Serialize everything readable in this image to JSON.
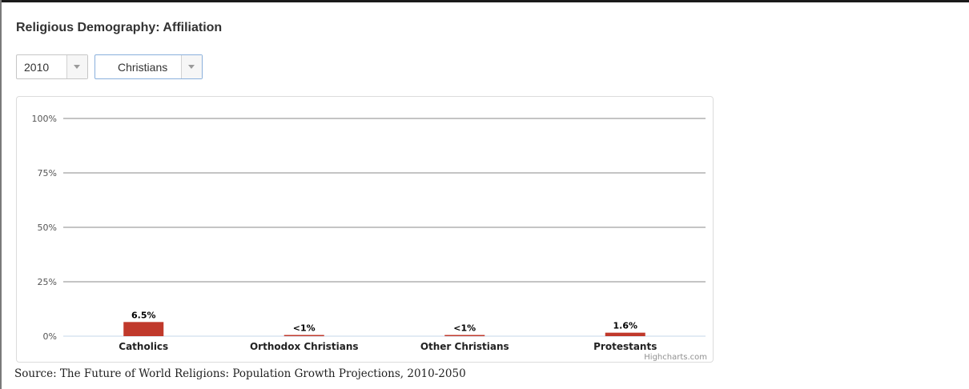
{
  "header": {
    "title": "Religious Demography: Affiliation"
  },
  "filters": {
    "year": {
      "selected": "2010"
    },
    "group": {
      "selected": "Christians"
    }
  },
  "chart_data": {
    "type": "bar",
    "categories": [
      "Catholics",
      "Orthodox Christians",
      "Other Christians",
      "Protestants"
    ],
    "values": [
      6.5,
      0.5,
      0.5,
      1.6
    ],
    "data_labels": [
      "6.5%",
      "<1%",
      "<1%",
      "1.6%"
    ],
    "yticks": [
      "0%",
      "25%",
      "50%",
      "75%",
      "100%"
    ],
    "ylim": [
      0,
      100
    ],
    "grid": true,
    "colors": {
      "bar": "#c0392b",
      "grid": "#8a8a8a",
      "axis": "#c6d7e8"
    },
    "credit": "Highcharts.com"
  },
  "footer": {
    "source": "Source: The Future of World Religions: Population Growth Projections, 2010-2050"
  }
}
